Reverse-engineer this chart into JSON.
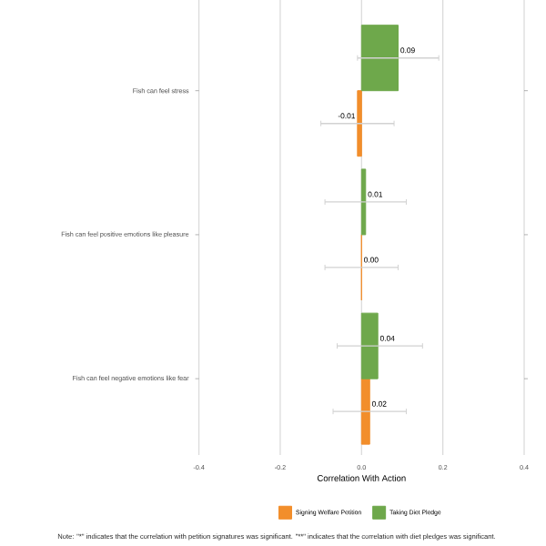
{
  "chart_data": {
    "type": "bar",
    "orientation": "horizontal",
    "categories": [
      "Fish can feel stress",
      "Fish can feel positive emotions like pleasure",
      "Fish can feel negative emotions like fear"
    ],
    "series": [
      {
        "name": "Signing Welfare Petition",
        "color": "#f28e2b",
        "values": [
          -0.01,
          0.0,
          0.02
        ],
        "errors": [
          [
            -0.1,
            0.08
          ],
          [
            -0.09,
            0.09
          ],
          [
            -0.07,
            0.11
          ]
        ],
        "value_labels": [
          "-0.01",
          "0.00",
          "0.02"
        ]
      },
      {
        "name": "Taking Diet Pledge",
        "color": "#6ea84b",
        "values": [
          0.09,
          0.01,
          0.04
        ],
        "errors": [
          [
            -0.01,
            0.19
          ],
          [
            -0.09,
            0.11
          ],
          [
            -0.06,
            0.15
          ]
        ],
        "value_labels": [
          "0.09",
          "0.01",
          "0.04"
        ]
      }
    ],
    "xlim": [
      -0.4,
      0.4
    ],
    "xticks": [
      {
        "value": -0.4,
        "label": "-0.4"
      },
      {
        "value": -0.2,
        "label": "-0.2"
      },
      {
        "value": 0,
        "label": "0.0"
      },
      {
        "value": 0.2,
        "label": "0.2"
      },
      {
        "value": 0.4,
        "label": "0.4"
      }
    ],
    "xlabel": "Correlation With Action",
    "grid": "x",
    "legend": "bottom",
    "annotations": [
      "Note: \"*\" indicates that the correlation with petition signatures was significant. \"**\" indicates that the correlation with diet pledges was significant."
    ]
  }
}
